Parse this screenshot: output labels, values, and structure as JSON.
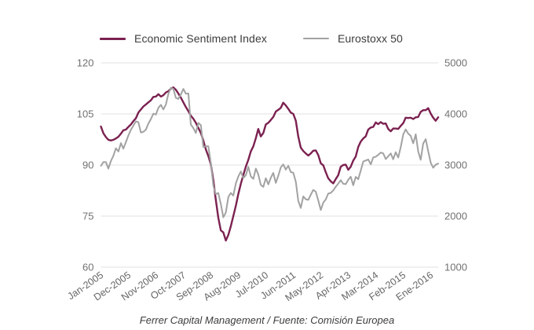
{
  "caption": "Ferrer Capital Management / Fuente: Comisión Europea",
  "colors": {
    "background": "#ffffff",
    "grid": "#e2e2e2",
    "axis_text": "#717171",
    "esi_line": "#7b2150",
    "eurostoxx_line": "#a2a2a2"
  },
  "chart_data": {
    "type": "line",
    "title": "",
    "xlabel": "",
    "ylabel_left": "",
    "ylabel_right": "",
    "grid": "horizontal-only",
    "legend_position": "top",
    "x_tick_labels": [
      "Jan-2005",
      "Dec-2005",
      "Nov-2006",
      "Oct-2007",
      "Sep-2008",
      "Aug-2009",
      "Jul-2010",
      "Jun-2011",
      "May-2012",
      "Apr-2013",
      "Mar-2014",
      "Feb-2015",
      "Ene-2016"
    ],
    "x_tick_every_n_months": 11,
    "left_axis": {
      "min": 60,
      "max": 120,
      "ticks": [
        "120",
        "105",
        "90",
        "75",
        "60"
      ]
    },
    "right_axis": {
      "min": 1000,
      "max": 5000,
      "ticks": [
        "5000",
        "4000",
        "3000",
        "2000",
        "1000"
      ]
    },
    "series": [
      {
        "name": "Economic Sentiment Index",
        "axis": "left",
        "color": "#7b2150",
        "stroke_width": 2.4,
        "values": [
          101.3,
          99.3,
          98.2,
          97.4,
          97.2,
          97.4,
          97.8,
          98.3,
          99.2,
          100.2,
          100.4,
          101.2,
          101.9,
          102.9,
          103.7,
          105.4,
          106.3,
          107.2,
          107.8,
          108.4,
          109.0,
          110.0,
          110.1,
          110.8,
          110.1,
          110.5,
          111.3,
          111.7,
          112.4,
          112.8,
          112.1,
          111.0,
          109.8,
          108.4,
          107.0,
          105.8,
          104.5,
          103.6,
          102.4,
          100.9,
          99.4,
          97.2,
          94.6,
          92.6,
          90.2,
          85.5,
          79.8,
          74.5,
          70.8,
          70.2,
          67.8,
          69.5,
          72.0,
          75.0,
          78.0,
          81.5,
          84.5,
          87.0,
          89.5,
          91.5,
          94.0,
          95.5,
          97.9,
          100.6,
          98.4,
          99.4,
          101.9,
          102.4,
          103.2,
          104.1,
          105.7,
          106.2,
          106.8,
          108.3,
          107.5,
          106.5,
          105.4,
          105.0,
          103.0,
          98.4,
          95.1,
          94.1,
          93.4,
          92.8,
          93.4,
          94.2,
          94.3,
          92.9,
          90.5,
          89.9,
          87.9,
          86.1,
          85.2,
          84.6,
          85.9,
          87.0,
          89.5,
          90.0,
          90.1,
          88.6,
          89.5,
          91.3,
          92.5,
          95.3,
          96.9,
          97.8,
          98.4,
          100.4,
          101.0,
          101.2,
          102.5,
          102.0,
          102.6,
          102.1,
          102.2,
          100.6,
          99.9,
          100.7,
          100.7,
          100.6,
          101.5,
          102.3,
          103.9,
          103.8,
          103.9,
          103.5,
          104.0,
          104.1,
          105.6,
          106.1,
          106.1,
          106.7,
          105.1,
          103.9,
          103.0,
          104.0
        ]
      },
      {
        "name": "Eurostoxx 50",
        "axis": "right",
        "color": "#a2a2a2",
        "stroke_width": 2,
        "values": [
          2985,
          3058,
          3055,
          2930,
          3077,
          3182,
          3327,
          3264,
          3429,
          3320,
          3447,
          3579,
          3691,
          3774,
          3854,
          3839,
          3637,
          3649,
          3692,
          3809,
          3899,
          4005,
          3987,
          4120,
          4178,
          4087,
          4181,
          4392,
          4512,
          4489,
          4316,
          4294,
          4382,
          4489,
          4395,
          4400,
          3792,
          3725,
          3628,
          3825,
          3778,
          3353,
          3367,
          3365,
          3038,
          2591,
          2430,
          2451,
          2236,
          1976,
          2071,
          2376,
          2452,
          2401,
          2638,
          2775,
          2872,
          2744,
          2797,
          2966,
          2777,
          2728,
          2931,
          2816,
          2610,
          2573,
          2742,
          2622,
          2748,
          2844,
          2650,
          2793,
          2954,
          3013,
          2911,
          2985,
          2862,
          2848,
          2670,
          2302,
          2159,
          2385,
          2330,
          2317,
          2417,
          2512,
          2477,
          2306,
          2118,
          2264,
          2325,
          2440,
          2454,
          2503,
          2575,
          2636,
          2703,
          2633,
          2624,
          2712,
          2770,
          2603,
          2768,
          2721,
          2893,
          3068,
          3087,
          3109,
          3014,
          3149,
          3162,
          3198,
          3244,
          3228,
          3116,
          3173,
          3226,
          3113,
          3251,
          3146,
          3351,
          3599,
          3697,
          3615,
          3571,
          3424,
          3601,
          3269,
          3101,
          3418,
          3506,
          3268,
          3045,
          2946,
          3005,
          3028
        ]
      }
    ]
  }
}
